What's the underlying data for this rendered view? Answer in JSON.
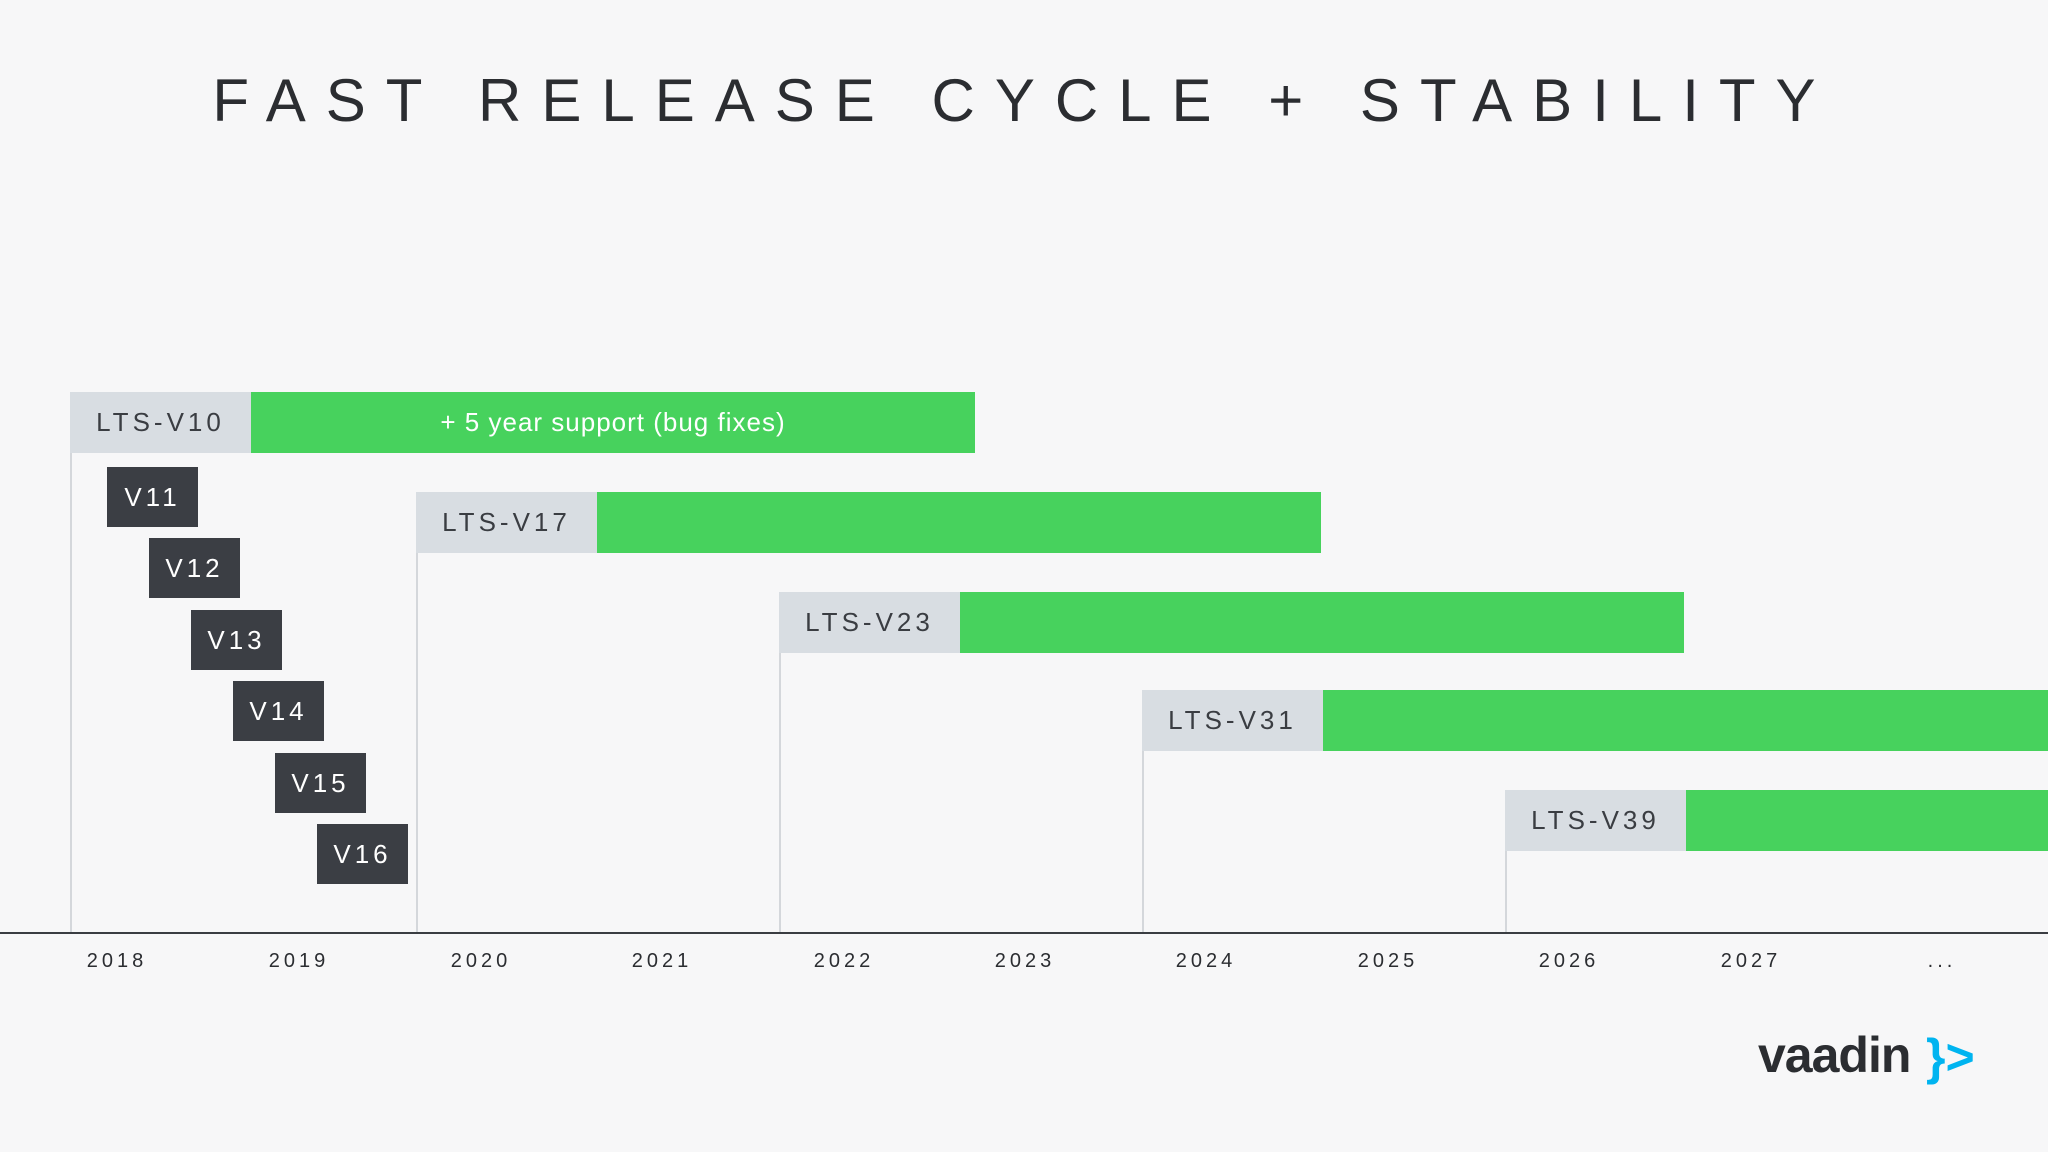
{
  "title": "FAST RELEASE CYCLE + STABILITY",
  "lts_releases": [
    {
      "label": "LTS-V10",
      "support_text": "+ 5 year support (bug fixes)"
    },
    {
      "label": "LTS-V17",
      "support_text": ""
    },
    {
      "label": "LTS-V23",
      "support_text": ""
    },
    {
      "label": "LTS-V31",
      "support_text": ""
    },
    {
      "label": "LTS-V39",
      "support_text": ""
    }
  ],
  "minor_versions": [
    "V11",
    "V12",
    "V13",
    "V14",
    "V15",
    "V16"
  ],
  "years": [
    "2018",
    "2019",
    "2020",
    "2021",
    "2022",
    "2023",
    "2024",
    "2025",
    "2026",
    "2027",
    "..."
  ],
  "logo": {
    "text": "vaadin",
    "mark": "}>"
  },
  "colors": {
    "background": "#f7f7f8",
    "support_green": "#47d25d",
    "lts_label_gray": "#d8dde2",
    "version_dark": "#3b3e44",
    "logo_blue": "#00b4f0"
  }
}
